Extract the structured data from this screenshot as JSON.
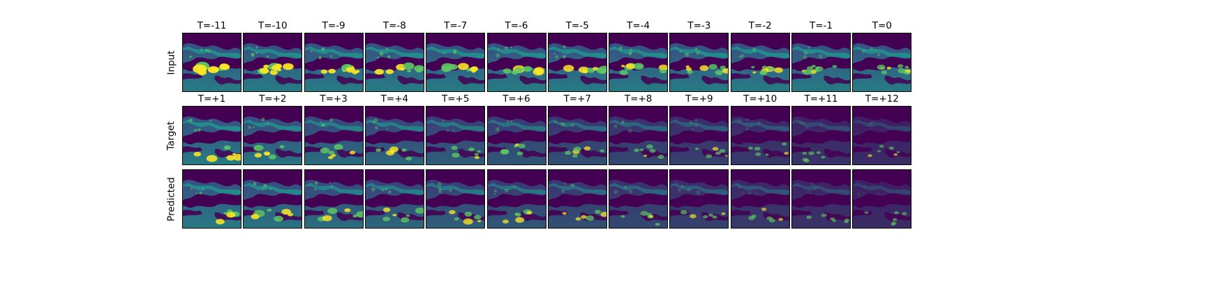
{
  "figure": {
    "rows": [
      {
        "label": "Input",
        "titles": [
          "T=-11",
          "T=-10",
          "T=-9",
          "T=-8",
          "T=-7",
          "T=-6",
          "T=-5",
          "T=-4",
          "T=-3",
          "T=-2",
          "T=-1",
          "T=0"
        ]
      },
      {
        "label": "Target",
        "titles": [
          "T=+1",
          "T=+2",
          "T=+3",
          "T=+4",
          "T=+5",
          "T=+6",
          "T=+7",
          "T=+8",
          "T=+9",
          "T=+10",
          "T=+11",
          "T=+12"
        ]
      },
      {
        "label": "Predicted",
        "titles": []
      }
    ],
    "colormap": "viridis",
    "colors": {
      "dark": "#440154",
      "deep": "#3b528b",
      "mid": "#21918c",
      "green": "#5ec962",
      "yellow": "#fde725"
    }
  }
}
